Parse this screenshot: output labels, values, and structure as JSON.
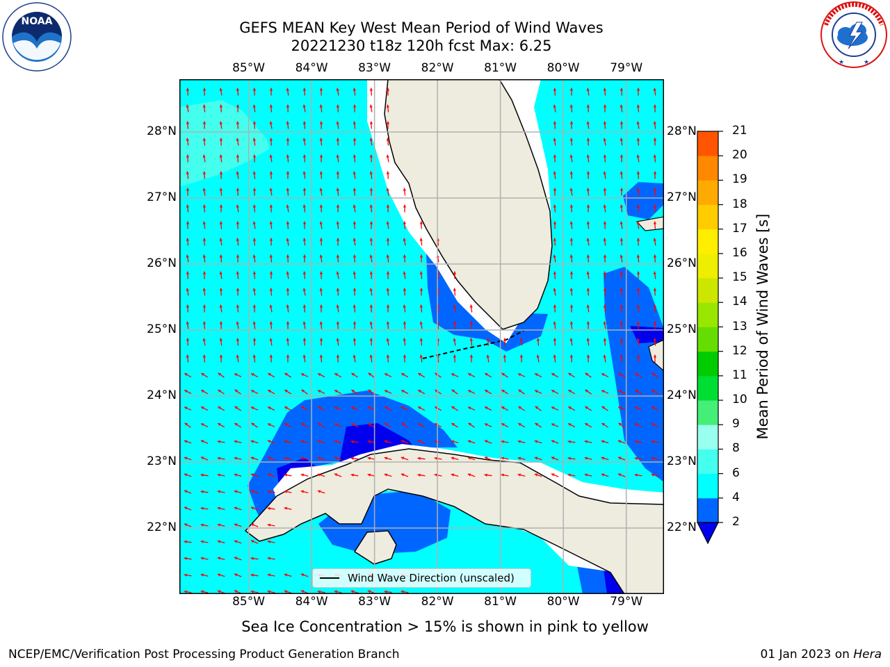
{
  "title": {
    "line1": "GEFS MEAN Key West Mean Period of Wind Waves",
    "line2": "20221230 t18z 120h fcst   Max: 6.25"
  },
  "logos": {
    "left": {
      "text": "NOAA",
      "ring_text": "NATIONAL OCEANIC AND ATMOSPHERIC ADMINISTRATION · U.S. DEPARTMENT OF COMMERCE"
    },
    "right": {
      "ring_text": "NATIONAL WEATHER SERVICE"
    }
  },
  "map": {
    "lon_labels": [
      "85°W",
      "84°W",
      "83°W",
      "82°W",
      "81°W",
      "80°W",
      "79°W"
    ],
    "lat_labels": [
      "22°N",
      "23°N",
      "24°N",
      "25°N",
      "26°N",
      "27°N",
      "28°N"
    ],
    "extent": {
      "lon": [
        -86.1,
        -78.4
      ],
      "lat": [
        21.0,
        28.8
      ]
    },
    "gridlines": true,
    "land_color": "#eeecdf",
    "ocean_color": "#00ffff",
    "arrow_color": "#ff0000",
    "legend": {
      "label": "Wind Wave Direction (unscaled)",
      "placement": "bottom-center"
    }
  },
  "colorbar": {
    "label": "Mean Period of Wind Waves [s]",
    "ticks": [
      "2",
      "4",
      "6",
      "8",
      "9",
      "10",
      "11",
      "12",
      "13",
      "14",
      "15",
      "16",
      "17",
      "18",
      "19",
      "20",
      "21"
    ],
    "levels": [
      2,
      4,
      6,
      8,
      9,
      10,
      11,
      12,
      13,
      14,
      15,
      16,
      17,
      18,
      19,
      20,
      21
    ],
    "colors": [
      "#0066ff",
      "#00ffff",
      "#44ffee",
      "#99ffee",
      "#44ee77",
      "#00dd33",
      "#00cc00",
      "#66dd00",
      "#99e600",
      "#cce600",
      "#eeee00",
      "#ffee00",
      "#ffcc00",
      "#ffaa00",
      "#ff8800",
      "#ff5500",
      "#ff2200",
      "#ff0000"
    ],
    "under_color": "#0000ee",
    "extend": "min"
  },
  "footnote": "Sea Ice Concentration > 15% is shown in pink to yellow",
  "credit": "NCEP/EMC/Verification Post Processing Product Generation Branch",
  "date_credit": {
    "date": "01 Jan 2023 on ",
    "host": "Hera"
  }
}
